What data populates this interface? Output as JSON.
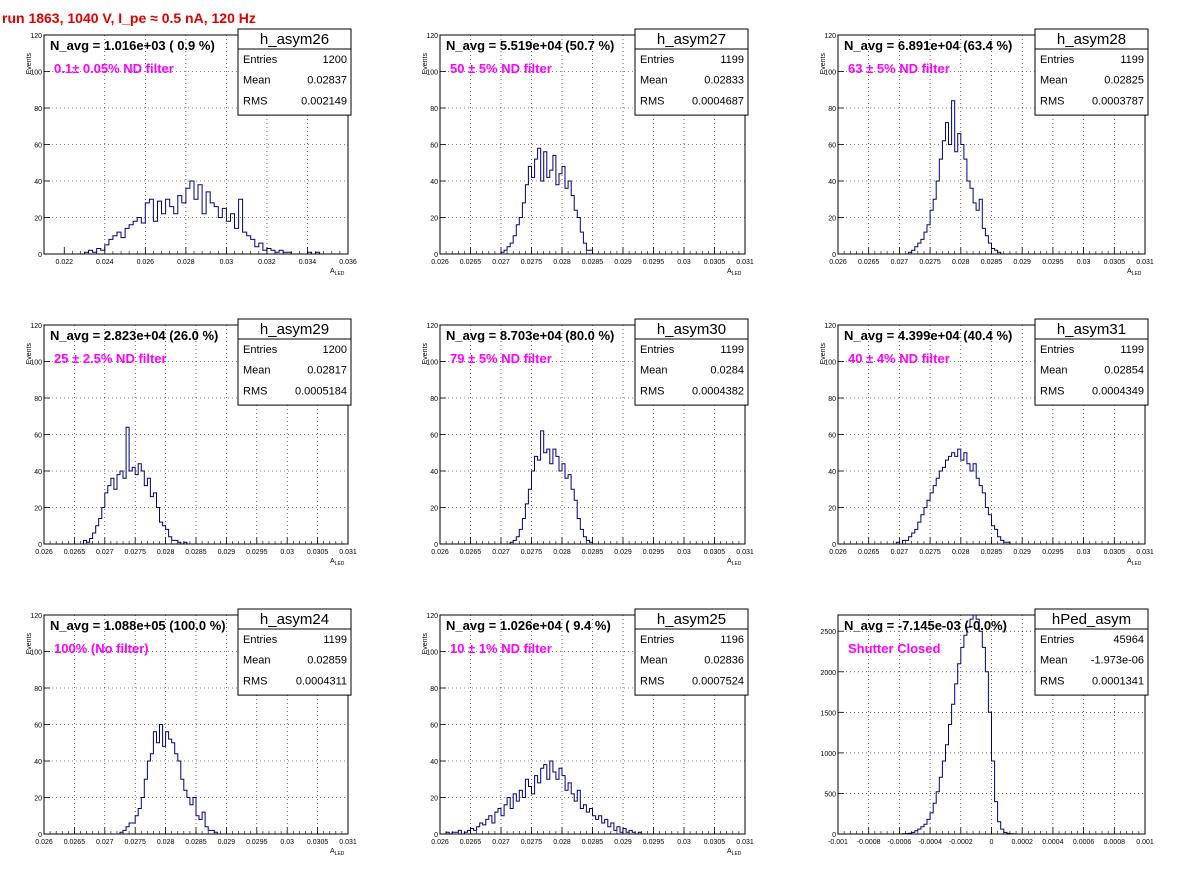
{
  "page_title": "run 1863,  1040 V, I_pe ≈ 0.5 nA, 120 Hz",
  "colors": {
    "title": "#e00000",
    "annotation": "#ff00ff",
    "histogram": "#000080",
    "grid": "#000000"
  },
  "chart_data": [
    {
      "type": "histogram",
      "name": "h_asym26",
      "navg": "N_avg = 1.016e+03 ( 0.9 %)",
      "annotation": "0.1± 0.05% ND filter",
      "stats": {
        "entries_label": "Entries",
        "entries": "1200",
        "mean_label": "Mean",
        "mean": "0.02837",
        "rms_label": "RMS",
        "rms": "0.002149"
      },
      "xlabel": "A",
      "xlabel_sub": "LED",
      "ylabel": "Events",
      "xlim": [
        0.021,
        0.036
      ],
      "ylim": [
        0,
        120
      ],
      "xticks": [
        0.022,
        0.024,
        0.026,
        0.028,
        0.03,
        0.032,
        0.034,
        0.036
      ],
      "xtick_labels": [
        "0.022",
        "0.024",
        "0.026",
        "0.028",
        "0.03",
        "0.032",
        "0.034",
        "0.036"
      ],
      "yticks": [
        0,
        20,
        40,
        60,
        80,
        100,
        120
      ],
      "ytick_labels": [
        "0",
        "20",
        "40",
        "60",
        "80",
        "100",
        "120"
      ],
      "bin_start": 0.022,
      "bin_width": 0.0002,
      "counts": [
        0,
        0,
        0,
        0,
        0,
        1,
        2,
        1,
        3,
        2,
        5,
        8,
        10,
        12,
        9,
        14,
        16,
        18,
        20,
        17,
        28,
        30,
        18,
        29,
        22,
        30,
        26,
        22,
        32,
        28,
        36,
        40,
        30,
        38,
        22,
        34,
        28,
        26,
        20,
        25,
        18,
        22,
        14,
        30,
        12,
        10,
        8,
        4,
        6,
        2,
        3,
        2,
        1,
        2,
        1,
        1,
        0,
        0,
        0,
        0,
        1,
        0,
        1,
        0,
        0
      ]
    },
    {
      "type": "histogram",
      "name": "h_asym27",
      "navg": "N_avg = 5.519e+04 (50.7 %)",
      "annotation": "50 ± 5% ND filter",
      "stats": {
        "entries_label": "Entries",
        "entries": "1199",
        "mean_label": "Mean",
        "mean": "0.02833",
        "rms_label": "RMS",
        "rms": "0.0004687"
      },
      "xlabel": "A",
      "xlabel_sub": "LED",
      "ylabel": "Events",
      "xlim": [
        0.026,
        0.031
      ],
      "ylim": [
        0,
        120
      ],
      "xticks": [
        0.026,
        0.0265,
        0.027,
        0.0275,
        0.028,
        0.0285,
        0.029,
        0.0295,
        0.03,
        0.0305,
        0.031
      ],
      "xtick_labels": [
        "0.026",
        "0.0265",
        "0.027",
        "0.0275",
        "0.028",
        "0.0285",
        "0.029",
        "0.0295",
        "0.03",
        "0.0305",
        "0.031"
      ],
      "yticks": [
        0,
        20,
        40,
        60,
        80,
        100,
        120
      ],
      "ytick_labels": [
        "0",
        "20",
        "40",
        "60",
        "80",
        "100",
        "120"
      ],
      "bin_start": 0.0269,
      "bin_width": 5e-05,
      "counts": [
        0,
        0,
        1,
        2,
        4,
        6,
        10,
        16,
        20,
        28,
        38,
        48,
        42,
        52,
        58,
        40,
        56,
        42,
        46,
        54,
        38,
        44,
        48,
        36,
        40,
        32,
        24,
        20,
        12,
        6,
        2,
        2,
        0,
        0,
        0,
        0
      ]
    },
    {
      "type": "histogram",
      "name": "h_asym28",
      "navg": "N_avg = 6.891e+04 (63.4 %)",
      "annotation": "63 ± 5% ND filter",
      "stats": {
        "entries_label": "Entries",
        "entries": "1199",
        "mean_label": "Mean",
        "mean": "0.02825",
        "rms_label": "RMS",
        "rms": "0.0003787"
      },
      "xlabel": "A",
      "xlabel_sub": "LED",
      "ylabel": "Events",
      "xlim": [
        0.026,
        0.031
      ],
      "ylim": [
        0,
        120
      ],
      "xticks": [
        0.026,
        0.0265,
        0.027,
        0.0275,
        0.028,
        0.0285,
        0.029,
        0.0295,
        0.03,
        0.0305,
        0.031
      ],
      "xtick_labels": [
        "0.026",
        "0.0265",
        "0.027",
        "0.0275",
        "0.028",
        "0.0285",
        "0.029",
        "0.0295",
        "0.03",
        "0.0305",
        "0.031"
      ],
      "yticks": [
        0,
        20,
        40,
        60,
        80,
        100,
        120
      ],
      "ytick_labels": [
        "0",
        "20",
        "40",
        "60",
        "80",
        "100",
        "120"
      ],
      "bin_start": 0.0271,
      "bin_width": 5e-05,
      "counts": [
        0,
        1,
        2,
        4,
        6,
        8,
        12,
        16,
        24,
        30,
        40,
        52,
        62,
        72,
        60,
        84,
        56,
        66,
        60,
        52,
        40,
        36,
        28,
        24,
        30,
        14,
        10,
        6,
        3,
        2,
        1,
        0
      ]
    },
    {
      "type": "histogram",
      "name": "h_asym29",
      "navg": "N_avg = 2.823e+04 (26.0 %)",
      "annotation": "25 ± 2.5% ND filter",
      "stats": {
        "entries_label": "Entries",
        "entries": "1200",
        "mean_label": "Mean",
        "mean": "0.02817",
        "rms_label": "RMS",
        "rms": "0.0005184"
      },
      "xlabel": "A",
      "xlabel_sub": "LED",
      "ylabel": "Events",
      "xlim": [
        0.026,
        0.031
      ],
      "ylim": [
        0,
        120
      ],
      "xticks": [
        0.026,
        0.0265,
        0.027,
        0.0275,
        0.028,
        0.0285,
        0.029,
        0.0295,
        0.03,
        0.0305,
        0.031
      ],
      "xtick_labels": [
        "0.026",
        "0.0265",
        "0.027",
        "0.0275",
        "0.028",
        "0.0285",
        "0.029",
        "0.0295",
        "0.03",
        "0.0305",
        "0.031"
      ],
      "yticks": [
        0,
        20,
        40,
        60,
        80,
        100,
        120
      ],
      "ytick_labels": [
        "0",
        "20",
        "40",
        "60",
        "80",
        "100",
        "120"
      ],
      "bin_start": 0.0266,
      "bin_width": 5e-05,
      "counts": [
        0,
        2,
        1,
        3,
        6,
        10,
        14,
        20,
        28,
        32,
        36,
        30,
        38,
        40,
        36,
        64,
        40,
        42,
        38,
        44,
        40,
        32,
        36,
        26,
        28,
        20,
        12,
        10,
        8,
        4,
        2,
        2,
        1,
        0,
        1,
        0,
        0
      ]
    },
    {
      "type": "histogram",
      "name": "h_asym30",
      "navg": "N_avg = 8.703e+04 (80.0 %)",
      "annotation": "79 ± 5% ND filter",
      "stats": {
        "entries_label": "Entries",
        "entries": "1199",
        "mean_label": "Mean",
        "mean": "0.0284",
        "rms_label": "RMS",
        "rms": "0.0004382"
      },
      "xlabel": "A",
      "xlabel_sub": "LED",
      "ylabel": "Events",
      "xlim": [
        0.026,
        0.031
      ],
      "ylim": [
        0,
        120
      ],
      "xticks": [
        0.026,
        0.0265,
        0.027,
        0.0275,
        0.028,
        0.0285,
        0.029,
        0.0295,
        0.03,
        0.0305,
        0.031
      ],
      "xtick_labels": [
        "0.026",
        "0.0265",
        "0.027",
        "0.0275",
        "0.028",
        "0.0285",
        "0.029",
        "0.0295",
        "0.03",
        "0.0305",
        "0.031"
      ],
      "yticks": [
        0,
        20,
        40,
        60,
        80,
        100,
        120
      ],
      "ytick_labels": [
        "0",
        "20",
        "40",
        "60",
        "80",
        "100",
        "120"
      ],
      "bin_start": 0.0271,
      "bin_width": 5e-05,
      "counts": [
        0,
        1,
        2,
        4,
        8,
        14,
        22,
        30,
        40,
        48,
        46,
        62,
        50,
        52,
        44,
        52,
        48,
        40,
        44,
        36,
        38,
        30,
        24,
        14,
        8,
        4,
        2,
        1,
        0,
        0
      ]
    },
    {
      "type": "histogram",
      "name": "h_asym31",
      "navg": "N_avg = 4.399e+04 (40.4 %)",
      "annotation": "40 ± 4% ND filter",
      "stats": {
        "entries_label": "Entries",
        "entries": "1199",
        "mean_label": "Mean",
        "mean": "0.02854",
        "rms_label": "RMS",
        "rms": "0.0004349"
      },
      "xlabel": "A",
      "xlabel_sub": "LED",
      "ylabel": "Events",
      "xlim": [
        0.026,
        0.031
      ],
      "ylim": [
        0,
        120
      ],
      "xticks": [
        0.026,
        0.0265,
        0.027,
        0.0275,
        0.028,
        0.0285,
        0.029,
        0.0295,
        0.03,
        0.0305,
        0.031
      ],
      "xtick_labels": [
        "0.026",
        "0.0265",
        "0.027",
        "0.0275",
        "0.028",
        "0.0285",
        "0.029",
        "0.0295",
        "0.03",
        "0.0305",
        "0.031"
      ],
      "yticks": [
        0,
        20,
        40,
        60,
        80,
        100,
        120
      ],
      "ytick_labels": [
        "0",
        "20",
        "40",
        "60",
        "80",
        "100",
        "120"
      ],
      "bin_start": 0.0269,
      "bin_width": 5e-05,
      "counts": [
        0,
        1,
        0,
        2,
        2,
        4,
        6,
        8,
        12,
        16,
        20,
        24,
        28,
        32,
        36,
        40,
        42,
        46,
        48,
        50,
        48,
        52,
        46,
        50,
        44,
        40,
        44,
        36,
        32,
        28,
        20,
        16,
        10,
        8,
        4,
        2,
        1,
        1,
        0,
        0
      ]
    },
    {
      "type": "histogram",
      "name": "h_asym24",
      "navg": "N_avg = 1.088e+05 (100.0 %)",
      "annotation": "100% (No filter)",
      "stats": {
        "entries_label": "Entries",
        "entries": "1199",
        "mean_label": "Mean",
        "mean": "0.02859",
        "rms_label": "RMS",
        "rms": "0.0004311"
      },
      "xlabel": "A",
      "xlabel_sub": "LED",
      "ylabel": "Events",
      "xlim": [
        0.026,
        0.031
      ],
      "ylim": [
        0,
        120
      ],
      "xticks": [
        0.026,
        0.0265,
        0.027,
        0.0275,
        0.028,
        0.0285,
        0.029,
        0.0295,
        0.03,
        0.0305,
        0.031
      ],
      "xtick_labels": [
        "0.026",
        "0.0265",
        "0.027",
        "0.0275",
        "0.028",
        "0.0285",
        "0.029",
        "0.0295",
        "0.03",
        "0.0305",
        "0.031"
      ],
      "yticks": [
        0,
        20,
        40,
        60,
        80,
        100,
        120
      ],
      "ytick_labels": [
        "0",
        "20",
        "40",
        "60",
        "80",
        "100",
        "120"
      ],
      "bin_start": 0.0272,
      "bin_width": 5e-05,
      "counts": [
        0,
        1,
        2,
        4,
        6,
        6,
        10,
        14,
        20,
        30,
        40,
        44,
        56,
        50,
        60,
        48,
        56,
        52,
        50,
        44,
        40,
        30,
        24,
        20,
        16,
        20,
        10,
        8,
        12,
        4,
        2,
        2,
        1,
        0
      ]
    },
    {
      "type": "histogram",
      "name": "h_asym25",
      "navg": "N_avg = 1.026e+04 ( 9.4 %)",
      "annotation": "10 ± 1% ND filter",
      "stats": {
        "entries_label": "Entries",
        "entries": "1196",
        "mean_label": "Mean",
        "mean": "0.02836",
        "rms_label": "RMS",
        "rms": "0.0007524"
      },
      "xlabel": "A",
      "xlabel_sub": "LED",
      "ylabel": "Events",
      "xlim": [
        0.026,
        0.031
      ],
      "ylim": [
        0,
        120
      ],
      "xticks": [
        0.026,
        0.0265,
        0.027,
        0.0275,
        0.028,
        0.0285,
        0.029,
        0.0295,
        0.03,
        0.0305,
        0.031
      ],
      "xtick_labels": [
        "0.026",
        "0.0265",
        "0.027",
        "0.0275",
        "0.028",
        "0.0285",
        "0.029",
        "0.0295",
        "0.03",
        "0.0305",
        "0.031"
      ],
      "yticks": [
        0,
        20,
        40,
        60,
        80,
        100,
        120
      ],
      "ytick_labels": [
        "0",
        "20",
        "40",
        "60",
        "80",
        "100",
        "120"
      ],
      "bin_start": 0.0261,
      "bin_width": 5e-05,
      "counts": [
        1,
        0,
        1,
        1,
        2,
        0,
        1,
        2,
        3,
        2,
        4,
        6,
        5,
        8,
        10,
        6,
        12,
        14,
        10,
        16,
        20,
        14,
        22,
        18,
        24,
        20,
        30,
        26,
        22,
        32,
        28,
        36,
        38,
        30,
        40,
        34,
        30,
        36,
        32,
        24,
        28,
        22,
        18,
        24,
        14,
        16,
        12,
        14,
        10,
        8,
        10,
        6,
        8,
        4,
        6,
        2,
        4,
        1,
        3,
        1,
        2,
        1,
        0,
        1,
        0,
        0
      ]
    },
    {
      "type": "histogram",
      "name": "hPed_asym",
      "navg": "N_avg = -7.145e-03 (-0.0%)",
      "annotation": "Shutter Closed",
      "stats": {
        "entries_label": "Entries",
        "entries": "45964",
        "mean_label": "Mean",
        "mean": "-1.973e-06",
        "rms_label": "RMS",
        "rms": "0.0001341"
      },
      "xlabel": "",
      "xlabel_sub": "",
      "ylabel": "",
      "xlim": [
        -0.001,
        0.001
      ],
      "ylim": [
        0,
        2700
      ],
      "xticks": [
        -0.001,
        -0.0008,
        -0.0006,
        -0.0004,
        -0.0002,
        0,
        0.0002,
        0.0004,
        0.0006,
        0.0008,
        0.001
      ],
      "xtick_labels": [
        "-0.001",
        "-0.0008",
        "-0.0006",
        "-0.0004",
        "-0.0002",
        "0",
        "0.0002",
        "0.0004",
        "0.0006",
        "0.0008",
        "0.001"
      ],
      "yticks": [
        0,
        500,
        1000,
        1500,
        2000,
        2500
      ],
      "ytick_labels": [
        "0",
        "500",
        "1000",
        "1500",
        "2000",
        "2500"
      ],
      "bin_start": -0.0006,
      "bin_width": 2e-05,
      "counts": [
        0,
        2,
        5,
        10,
        20,
        40,
        60,
        90,
        120,
        180,
        260,
        380,
        520,
        700,
        900,
        1100,
        1350,
        1600,
        1850,
        2100,
        2300,
        2450,
        2550,
        2650,
        2700,
        2650,
        2500,
        2300,
        2000,
        1500,
        900,
        400,
        150,
        60,
        20,
        8,
        3,
        1,
        0,
        0,
        0,
        0,
        0,
        0,
        0,
        0,
        0,
        0,
        0,
        0,
        0,
        0,
        0,
        0,
        0,
        0,
        0,
        0,
        0,
        0
      ]
    }
  ]
}
